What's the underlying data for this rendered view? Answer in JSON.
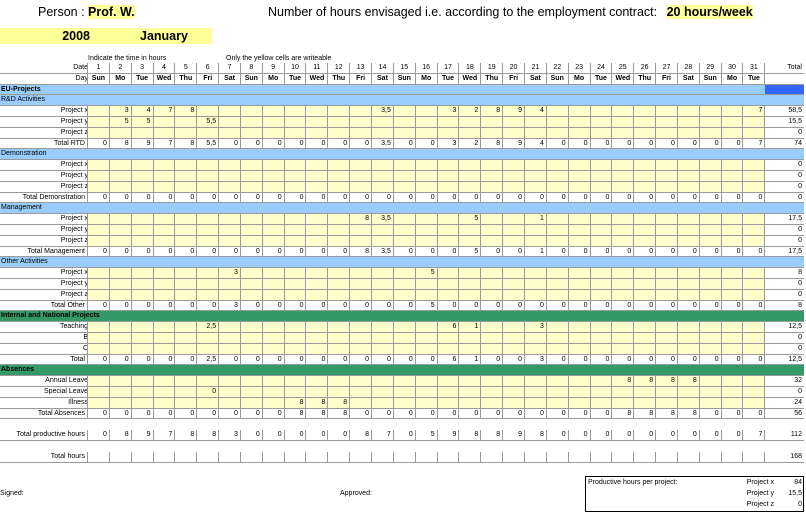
{
  "header": {
    "person_label": "Person :",
    "person_name": "Prof. W.",
    "contract_text": "Number of hours envisaged i.e. according to the employment contract:",
    "contract_hours": "20 hours/week",
    "year": "2008",
    "month": "January",
    "note_left": "Indicate the time in hours",
    "note_right": "Only the yellow cells are writeable"
  },
  "columns": {
    "date_label": "Date",
    "day_label": "Day",
    "total_label": "Total",
    "dates": [
      "1",
      "2",
      "3",
      "4",
      "5",
      "6",
      "7",
      "8",
      "9",
      "10",
      "11",
      "12",
      "13",
      "14",
      "15",
      "16",
      "17",
      "18",
      "19",
      "20",
      "21",
      "22",
      "23",
      "24",
      "25",
      "26",
      "27",
      "28",
      "29",
      "30",
      "31"
    ],
    "days": [
      "Sun",
      "Mo",
      "Tue",
      "Wed",
      "Thu",
      "Fri",
      "Sat",
      "Sun",
      "Mo",
      "Tue",
      "Wed",
      "Thu",
      "Fri",
      "Sat",
      "Sun",
      "Mo",
      "Tue",
      "Wed",
      "Thu",
      "Fri",
      "Sat",
      "Sun",
      "Mo",
      "Tue",
      "Wed",
      "Thu",
      "Fri",
      "Sat",
      "Sun",
      "Mo",
      "Tue"
    ]
  },
  "rows": [
    {
      "type": "section",
      "color": "#99ccff",
      "label": "EU-Projects"
    },
    {
      "type": "sub",
      "color": "#99ccff",
      "label": "R&D Activities"
    },
    {
      "type": "entry",
      "label": "Project x",
      "cells": [
        "",
        "3",
        "4",
        "7",
        "8",
        "",
        "",
        "",
        "",
        "",
        "",
        "",
        "",
        "3,5",
        "",
        "",
        "3",
        "2",
        "8",
        "9",
        "4",
        "",
        "",
        "",
        "",
        "",
        "",
        "",
        "",
        "",
        "7"
      ],
      "total": "58,5"
    },
    {
      "type": "entry",
      "label": "Project y",
      "cells": [
        "",
        "5",
        "5",
        "",
        "",
        "5,5",
        "",
        "",
        "",
        "",
        "",
        "",
        "",
        "",
        "",
        "",
        "",
        "",
        "",
        "",
        "",
        "",
        "",
        "",
        "",
        "",
        "",
        "",
        "",
        "",
        ""
      ],
      "total": "15,5"
    },
    {
      "type": "entry",
      "label": "Project z",
      "cells": [
        "",
        "",
        "",
        "",
        "",
        "",
        "",
        "",
        "",
        "",
        "",
        "",
        "",
        "",
        "",
        "",
        "",
        "",
        "",
        "",
        "",
        "",
        "",
        "",
        "",
        "",
        "",
        "",
        "",
        "",
        ""
      ],
      "total": "0"
    },
    {
      "type": "total",
      "label": "Total RTD",
      "cells": [
        "0",
        "8",
        "9",
        "7",
        "8",
        "5,5",
        "0",
        "0",
        "0",
        "0",
        "0",
        "0",
        "0",
        "3,5",
        "0",
        "0",
        "3",
        "2",
        "8",
        "9",
        "4",
        "0",
        "0",
        "0",
        "0",
        "0",
        "0",
        "0",
        "0",
        "0",
        "7"
      ],
      "total": "74"
    },
    {
      "type": "sub",
      "color": "#99ccff",
      "label": "Demonstration"
    },
    {
      "type": "entry",
      "label": "Project x",
      "cells": [
        "",
        "",
        "",
        "",
        "",
        "",
        "",
        "",
        "",
        "",
        "",
        "",
        "",
        "",
        "",
        "",
        "",
        "",
        "",
        "",
        "",
        "",
        "",
        "",
        "",
        "",
        "",
        "",
        "",
        "",
        ""
      ],
      "total": "0"
    },
    {
      "type": "entry",
      "label": "Project y",
      "cells": [
        "",
        "",
        "",
        "",
        "",
        "",
        "",
        "",
        "",
        "",
        "",
        "",
        "",
        "",
        "",
        "",
        "",
        "",
        "",
        "",
        "",
        "",
        "",
        "",
        "",
        "",
        "",
        "",
        "",
        "",
        ""
      ],
      "total": "0"
    },
    {
      "type": "entry",
      "label": "Project z",
      "cells": [
        "",
        "",
        "",
        "",
        "",
        "",
        "",
        "",
        "",
        "",
        "",
        "",
        "",
        "",
        "",
        "",
        "",
        "",
        "",
        "",
        "",
        "",
        "",
        "",
        "",
        "",
        "",
        "",
        "",
        "",
        ""
      ],
      "total": "0"
    },
    {
      "type": "total",
      "label": "Total Demonstration",
      "cells": [
        "0",
        "0",
        "0",
        "0",
        "0",
        "0",
        "0",
        "0",
        "0",
        "0",
        "0",
        "0",
        "0",
        "0",
        "0",
        "0",
        "0",
        "0",
        "0",
        "0",
        "0",
        "0",
        "0",
        "0",
        "0",
        "0",
        "0",
        "0",
        "0",
        "0",
        "0"
      ],
      "total": "0"
    },
    {
      "type": "sub",
      "color": "#99ccff",
      "label": "Management"
    },
    {
      "type": "entry",
      "label": "Project x",
      "cells": [
        "",
        "",
        "",
        "",
        "",
        "",
        "",
        "",
        "",
        "",
        "",
        "",
        "8",
        "3,5",
        "",
        "",
        "",
        "5",
        "",
        "",
        "1",
        "",
        "",
        "",
        "",
        "",
        "",
        "",
        "",
        "",
        ""
      ],
      "total": "17,5"
    },
    {
      "type": "entry",
      "label": "Project y",
      "cells": [
        "",
        "",
        "",
        "",
        "",
        "",
        "",
        "",
        "",
        "",
        "",
        "",
        "",
        "",
        "",
        "",
        "",
        "",
        "",
        "",
        "",
        "",
        "",
        "",
        "",
        "",
        "",
        "",
        "",
        "",
        ""
      ],
      "total": "0"
    },
    {
      "type": "entry",
      "label": "Project z",
      "cells": [
        "",
        "",
        "",
        "",
        "",
        "",
        "",
        "",
        "",
        "",
        "",
        "",
        "",
        "",
        "",
        "",
        "",
        "",
        "",
        "",
        "",
        "",
        "",
        "",
        "",
        "",
        "",
        "",
        "",
        "",
        ""
      ],
      "total": "0"
    },
    {
      "type": "total",
      "label": "Total Management",
      "cells": [
        "0",
        "0",
        "0",
        "0",
        "0",
        "0",
        "0",
        "0",
        "0",
        "0",
        "0",
        "0",
        "8",
        "3,5",
        "0",
        "0",
        "0",
        "5",
        "0",
        "0",
        "1",
        "0",
        "0",
        "0",
        "0",
        "0",
        "0",
        "0",
        "0",
        "0",
        "0"
      ],
      "total": "17,5"
    },
    {
      "type": "sub",
      "color": "#99ccff",
      "label": "Other Activities"
    },
    {
      "type": "entry",
      "label": "Project x",
      "cells": [
        "",
        "",
        "",
        "",
        "",
        "",
        "3",
        "",
        "",
        "",
        "",
        "",
        "",
        "",
        "",
        "5",
        "",
        "",
        "",
        "",
        "",
        "",
        "",
        "",
        "",
        "",
        "",
        "",
        "",
        "",
        ""
      ],
      "total": "8"
    },
    {
      "type": "entry",
      "label": "Project y",
      "cells": [
        "",
        "",
        "",
        "",
        "",
        "",
        "",
        "",
        "",
        "",
        "",
        "",
        "",
        "",
        "",
        "",
        "",
        "",
        "",
        "",
        "",
        "",
        "",
        "",
        "",
        "",
        "",
        "",
        "",
        "",
        ""
      ],
      "total": "0"
    },
    {
      "type": "entry",
      "label": "Project z",
      "cells": [
        "",
        "",
        "",
        "",
        "",
        "",
        "",
        "",
        "",
        "",
        "",
        "",
        "",
        "",
        "",
        "",
        "",
        "",
        "",
        "",
        "",
        "",
        "",
        "",
        "",
        "",
        "",
        "",
        "",
        "",
        ""
      ],
      "total": "0"
    },
    {
      "type": "total",
      "label": "Total Other",
      "cells": [
        "0",
        "0",
        "0",
        "0",
        "0",
        "0",
        "3",
        "0",
        "0",
        "0",
        "0",
        "0",
        "0",
        "0",
        "0",
        "5",
        "0",
        "0",
        "0",
        "0",
        "0",
        "0",
        "0",
        "0",
        "0",
        "0",
        "0",
        "0",
        "0",
        "0",
        "0"
      ],
      "total": "8"
    },
    {
      "type": "section",
      "color": "#339966",
      "label": "Internal and National Projects"
    },
    {
      "type": "entry",
      "label": "Teaching",
      "cells": [
        "",
        "",
        "",
        "",
        "",
        "2,5",
        "",
        "",
        "",
        "",
        "",
        "",
        "",
        "",
        "",
        "",
        "6",
        "1",
        "",
        "",
        "3",
        "",
        "",
        "",
        "",
        "",
        "",
        "",
        "",
        "",
        ""
      ],
      "total": "12,5"
    },
    {
      "type": "entry",
      "label": "B",
      "cells": [
        "",
        "",
        "",
        "",
        "",
        "",
        "",
        "",
        "",
        "",
        "",
        "",
        "",
        "",
        "",
        "",
        "",
        "",
        "",
        "",
        "",
        "",
        "",
        "",
        "",
        "",
        "",
        "",
        "",
        "",
        ""
      ],
      "total": "0"
    },
    {
      "type": "entry",
      "label": "C",
      "cells": [
        "",
        "",
        "",
        "",
        "",
        "",
        "",
        "",
        "",
        "",
        "",
        "",
        "",
        "",
        "",
        "",
        "",
        "",
        "",
        "",
        "",
        "",
        "",
        "",
        "",
        "",
        "",
        "",
        "",
        "",
        ""
      ],
      "total": "0"
    },
    {
      "type": "total",
      "label": "Total",
      "cells": [
        "0",
        "0",
        "0",
        "0",
        "0",
        "2,5",
        "0",
        "0",
        "0",
        "0",
        "0",
        "0",
        "0",
        "0",
        "0",
        "0",
        "6",
        "1",
        "0",
        "0",
        "3",
        "0",
        "0",
        "0",
        "0",
        "0",
        "0",
        "0",
        "0",
        "0",
        "0"
      ],
      "total": "12,5"
    },
    {
      "type": "section",
      "color": "#339966",
      "label": "Absences"
    },
    {
      "type": "entry",
      "label": "Annual Leave",
      "cells": [
        "",
        "",
        "",
        "",
        "",
        "",
        "",
        "",
        "",
        "",
        "",
        "",
        "",
        "",
        "",
        "",
        "",
        "",
        "",
        "",
        "",
        "",
        "",
        "",
        "8",
        "8",
        "8",
        "8",
        "",
        "",
        ""
      ],
      "total": "32"
    },
    {
      "type": "entry",
      "label": "Special Leave",
      "cells": [
        "",
        "",
        "",
        "",
        "",
        "0",
        "",
        "",
        "",
        "",
        "",
        "",
        "",
        "",
        "",
        "",
        "",
        "",
        "",
        "",
        "",
        "",
        "",
        "",
        "",
        "",
        "",
        "",
        "",
        "",
        ""
      ],
      "total": "0"
    },
    {
      "type": "entry",
      "label": "Illness",
      "cells": [
        "",
        "",
        "",
        "",
        "",
        "",
        "",
        "",
        "",
        "8",
        "8",
        "8",
        "",
        "",
        "",
        "",
        "",
        "",
        "",
        "",
        "",
        "",
        "",
        "",
        "",
        "",
        "",
        "",
        "",
        "",
        ""
      ],
      "total": "24"
    },
    {
      "type": "total",
      "label": "Total Absences",
      "cells": [
        "0",
        "0",
        "0",
        "0",
        "0",
        "0",
        "0",
        "0",
        "0",
        "8",
        "8",
        "8",
        "0",
        "0",
        "0",
        "0",
        "0",
        "0",
        "0",
        "0",
        "0",
        "0",
        "0",
        "0",
        "8",
        "8",
        "8",
        "8",
        "0",
        "0",
        "0"
      ],
      "total": "56"
    },
    {
      "type": "blank"
    },
    {
      "type": "total",
      "label": "Total productive hours",
      "cells": [
        "0",
        "8",
        "9",
        "7",
        "8",
        "8",
        "3",
        "0",
        "0",
        "0",
        "0",
        "0",
        "8",
        "7",
        "0",
        "5",
        "9",
        "8",
        "8",
        "9",
        "8",
        "0",
        "0",
        "0",
        "0",
        "0",
        "0",
        "0",
        "0",
        "0",
        "7"
      ],
      "total": "112"
    },
    {
      "type": "blank"
    },
    {
      "type": "total",
      "label": "Total hours",
      "cells": [
        "",
        "",
        "",
        "",
        "",
        "",
        "",
        "",
        "",
        "",
        "",
        "",
        "",
        "",
        "",
        "",
        "",
        "",
        "",
        "",
        "",
        "",
        "",
        "",
        "",
        "",
        "",
        "",
        "",
        "",
        ""
      ],
      "total": "168"
    }
  ],
  "footer": {
    "signed_label": "Signed:",
    "approved_label": "Approved:",
    "summary_title": "Productive hours per project:",
    "summary": [
      {
        "label": "Project x",
        "value": "84"
      },
      {
        "label": "Project y",
        "value": "15,5"
      },
      {
        "label": "Project z",
        "value": "0"
      }
    ]
  }
}
